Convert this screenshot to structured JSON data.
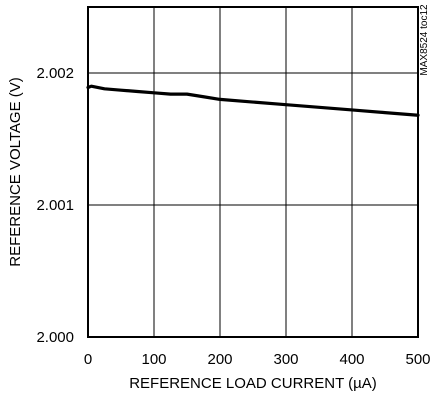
{
  "chart_data": {
    "type": "line",
    "title": "",
    "xlabel": "REFERENCE LOAD CURRENT (µA)",
    "ylabel": "REFERENCE VOLTAGE (V)",
    "xlim": [
      0,
      500
    ],
    "ylim": [
      2.0,
      2.0025
    ],
    "grid": true,
    "x_ticks": [
      0,
      100,
      200,
      300,
      400,
      500
    ],
    "x_tick_labels": [
      "0",
      "100",
      "200",
      "300",
      "400",
      "500"
    ],
    "y_ticks": [
      2.0,
      2.001,
      2.002
    ],
    "y_tick_labels": [
      "2.000",
      "2.001",
      "2.002"
    ],
    "series": [
      {
        "x": [
          0,
          5,
          25,
          50,
          75,
          100,
          125,
          150,
          175,
          200,
          250,
          300,
          350,
          400,
          450,
          500
        ],
        "y": [
          2.00189,
          2.0019,
          2.00188,
          2.00187,
          2.00186,
          2.00185,
          2.00184,
          2.00184,
          2.00182,
          2.0018,
          2.00178,
          2.00176,
          2.00174,
          2.00172,
          2.0017,
          2.00168
        ]
      }
    ],
    "colors": {
      "line": "#000000",
      "grid": "#000000",
      "frame": "#000000"
    }
  },
  "annotation": "MAX8524 toc12"
}
